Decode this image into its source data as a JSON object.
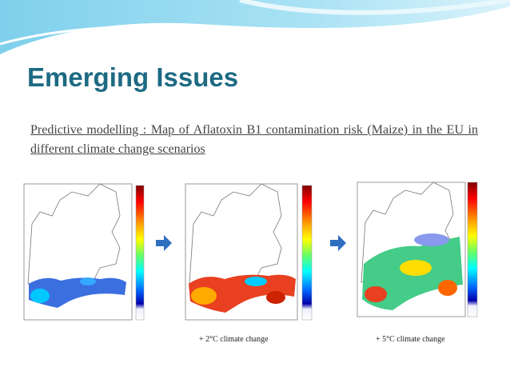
{
  "slide": {
    "title": "Emerging Issues",
    "subtitle": "Predictive modelling : Map of Aflatoxin B1 contamination risk (Maize) in the EU in different climate change scenarios",
    "captions": [
      "+ 2°C climate change",
      "+ 5°C climate change"
    ]
  }
}
